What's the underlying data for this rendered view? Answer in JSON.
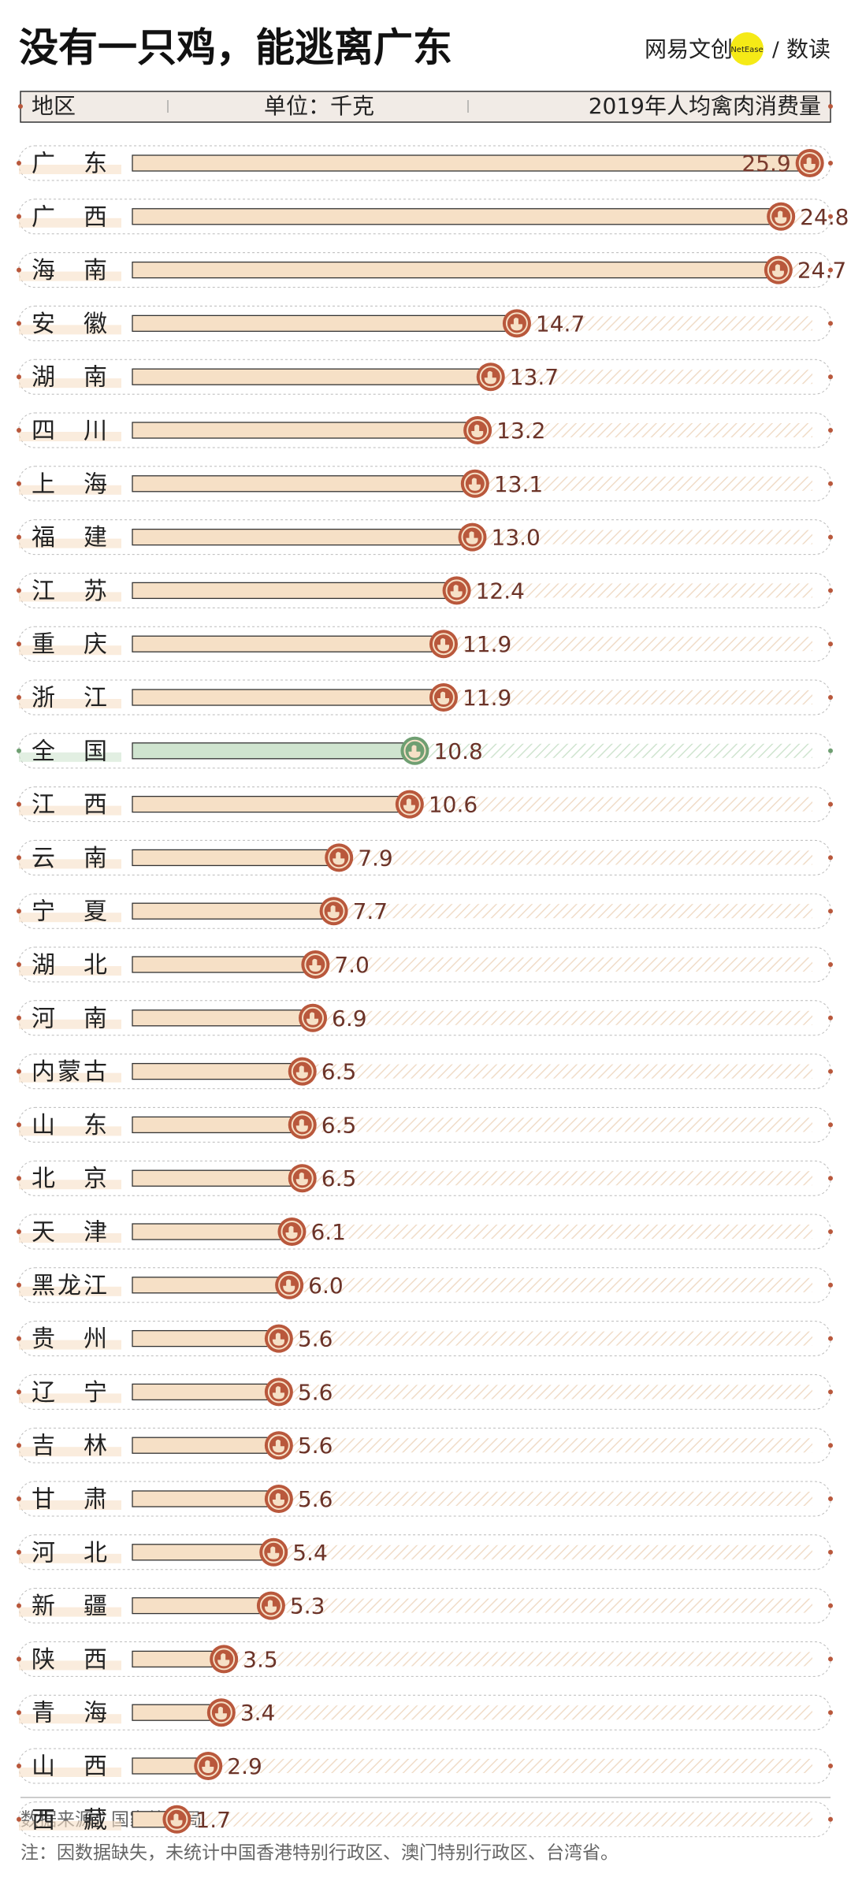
{
  "chart_data": {
    "type": "bar",
    "title": "没有一只鸡，能逃离广东",
    "brand": "网易文创",
    "brand_badge": "NetEase",
    "brand_separator": "/",
    "brand_sub": "数读",
    "header": [
      "地区",
      "单位：千克",
      "2019年人均禽肉消费量"
    ],
    "categories": [
      "广东",
      "广西",
      "海南",
      "安徽",
      "湖南",
      "四川",
      "上海",
      "福建",
      "江苏",
      "重庆",
      "浙江",
      "全国",
      "江西",
      "云南",
      "宁夏",
      "湖北",
      "河南",
      "内蒙古",
      "山东",
      "北京",
      "天津",
      "黑龙江",
      "贵州",
      "辽宁",
      "吉林",
      "甘肃",
      "河北",
      "新疆",
      "陕西",
      "青海",
      "山西",
      "西藏"
    ],
    "values": [
      25.9,
      24.8,
      24.7,
      14.7,
      13.7,
      13.2,
      13.1,
      13.0,
      12.4,
      11.9,
      11.9,
      10.8,
      10.6,
      7.9,
      7.7,
      7.0,
      6.9,
      6.5,
      6.5,
      6.5,
      6.1,
      6.0,
      5.6,
      5.6,
      5.6,
      5.6,
      5.4,
      5.3,
      3.5,
      3.4,
      2.9,
      1.7
    ],
    "value_labels": [
      "25.9",
      "24.8",
      "24.7",
      "14.7",
      "13.7",
      "13.2",
      "13.1",
      "13.0",
      "12.4",
      "11.9",
      "11.9",
      "10.8",
      "10.6",
      "7.9",
      "7.7",
      "7.0",
      "6.9",
      "6.5",
      "6.5",
      "6.5",
      "6.1",
      "6.0",
      "5.6",
      "5.6",
      "5.6",
      "5.6",
      "5.4",
      "5.3",
      "3.5",
      "3.4",
      "2.9",
      "1.7"
    ],
    "colors": [
      "#f6e0c6",
      "#f6e0c6",
      "#f6e0c6",
      "#f6e0c6",
      "#f6e0c6",
      "#f6e0c6",
      "#f6e0c6",
      "#f6e0c6",
      "#f6e0c6",
      "#f6e0c6",
      "#f6e0c6",
      "#cfe4cf",
      "#f6e0c6",
      "#f6e0c6",
      "#f6e0c6",
      "#f6e0c6",
      "#f6e0c6",
      "#f6e0c6",
      "#f6e0c6",
      "#f6e0c6",
      "#f6e0c6",
      "#f6e0c6",
      "#f6e0c6",
      "#f6e0c6",
      "#f6e0c6",
      "#f6e0c6",
      "#f6e0c6",
      "#f6e0c6",
      "#f6e0c6",
      "#f6e0c6",
      "#f6e0c6",
      "#f6e0c6"
    ],
    "icon_colors": [
      "#b9583c",
      "#b9583c",
      "#b9583c",
      "#b9583c",
      "#b9583c",
      "#b9583c",
      "#b9583c",
      "#b9583c",
      "#b9583c",
      "#b9583c",
      "#b9583c",
      "#6f9f72",
      "#b9583c",
      "#b9583c",
      "#b9583c",
      "#b9583c",
      "#b9583c",
      "#b9583c",
      "#b9583c",
      "#b9583c",
      "#b9583c",
      "#b9583c",
      "#b9583c",
      "#b9583c",
      "#b9583c",
      "#b9583c",
      "#b9583c",
      "#b9583c",
      "#b9583c",
      "#b9583c",
      "#b9583c",
      "#b9583c"
    ],
    "xlim": [
      0,
      26
    ],
    "source": "数据来源：国家统计局",
    "note": "注：因数据缺失，未统计中国香港特别行政区、澳门特别行政区、台湾省。"
  }
}
